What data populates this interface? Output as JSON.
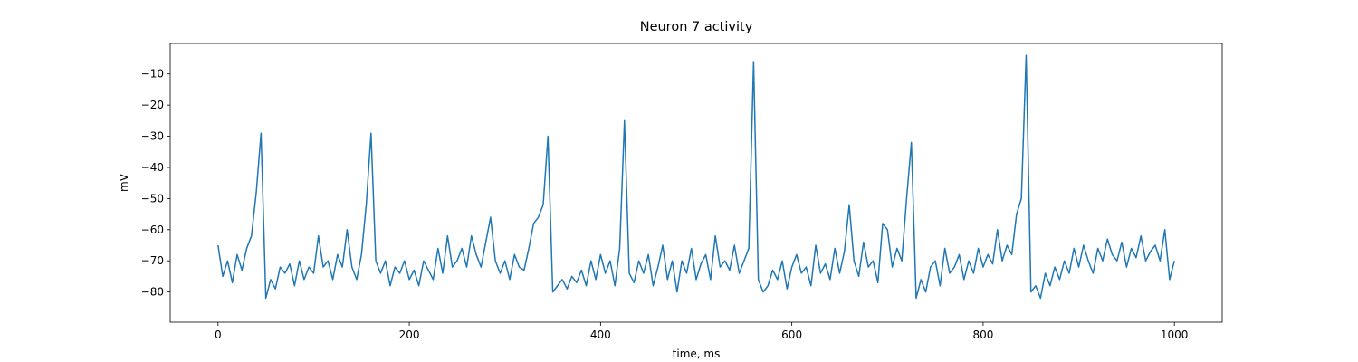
{
  "chart_data": {
    "type": "line",
    "title": "Neuron 7 activity",
    "x_label": "time, ms",
    "y_label": "mV",
    "color": "#1f77b4",
    "x": [
      0,
      5,
      10,
      15,
      20,
      25,
      30,
      35,
      40,
      45,
      50,
      55,
      60,
      65,
      70,
      75,
      80,
      85,
      90,
      95,
      100,
      105,
      110,
      115,
      120,
      125,
      130,
      135,
      140,
      145,
      150,
      155,
      160,
      165,
      170,
      175,
      180,
      185,
      190,
      195,
      200,
      205,
      210,
      215,
      220,
      225,
      230,
      235,
      240,
      245,
      250,
      255,
      260,
      265,
      270,
      275,
      280,
      285,
      290,
      295,
      300,
      305,
      310,
      315,
      320,
      325,
      330,
      335,
      340,
      345,
      350,
      355,
      360,
      365,
      370,
      375,
      380,
      385,
      390,
      395,
      400,
      405,
      410,
      415,
      420,
      425,
      430,
      435,
      440,
      445,
      450,
      455,
      460,
      465,
      470,
      475,
      480,
      485,
      490,
      495,
      500,
      505,
      510,
      515,
      520,
      525,
      530,
      535,
      540,
      545,
      550,
      555,
      560,
      565,
      570,
      575,
      580,
      585,
      590,
      595,
      600,
      605,
      610,
      615,
      620,
      625,
      630,
      635,
      640,
      645,
      650,
      655,
      660,
      665,
      670,
      675,
      680,
      685,
      690,
      695,
      700,
      705,
      710,
      715,
      720,
      725,
      730,
      735,
      740,
      745,
      750,
      755,
      760,
      765,
      770,
      775,
      780,
      785,
      790,
      795,
      800,
      805,
      810,
      815,
      820,
      825,
      830,
      835,
      840,
      845,
      850,
      855,
      860,
      865,
      870,
      875,
      880,
      885,
      890,
      895,
      900,
      905,
      910,
      915,
      920,
      925,
      930,
      935,
      940,
      945,
      950,
      955,
      960,
      965,
      970,
      975,
      980,
      985,
      990,
      995,
      1000
    ],
    "values": [
      -65,
      -75,
      -70,
      -77,
      -68,
      -73,
      -66,
      -62,
      -48,
      -29,
      -82,
      -76,
      -79,
      -72,
      -74,
      -71,
      -78,
      -70,
      -76,
      -72,
      -74,
      -62,
      -72,
      -70,
      -76,
      -68,
      -72,
      -60,
      -72,
      -76,
      -68,
      -52,
      -29,
      -70,
      -74,
      -70,
      -78,
      -72,
      -74,
      -70,
      -76,
      -73,
      -78,
      -70,
      -73,
      -76,
      -66,
      -74,
      -62,
      -72,
      -70,
      -66,
      -72,
      -62,
      -68,
      -72,
      -64,
      -56,
      -70,
      -74,
      -70,
      -76,
      -68,
      -72,
      -73,
      -66,
      -58,
      -56,
      -52,
      -30,
      -80,
      -78,
      -76,
      -79,
      -75,
      -77,
      -73,
      -78,
      -70,
      -76,
      -68,
      -74,
      -70,
      -78,
      -66,
      -25,
      -74,
      -77,
      -70,
      -74,
      -68,
      -78,
      -72,
      -65,
      -76,
      -70,
      -80,
      -70,
      -74,
      -66,
      -76,
      -71,
      -68,
      -76,
      -62,
      -72,
      -70,
      -73,
      -65,
      -74,
      -70,
      -66,
      -6,
      -76,
      -80,
      -78,
      -73,
      -76,
      -70,
      -79,
      -72,
      -68,
      -74,
      -72,
      -78,
      -65,
      -74,
      -71,
      -76,
      -66,
      -74,
      -67,
      -52,
      -70,
      -75,
      -64,
      -72,
      -70,
      -77,
      -58,
      -60,
      -72,
      -66,
      -70,
      -50,
      -32,
      -82,
      -76,
      -80,
      -72,
      -70,
      -78,
      -66,
      -74,
      -72,
      -68,
      -76,
      -70,
      -74,
      -66,
      -72,
      -68,
      -71,
      -60,
      -70,
      -65,
      -68,
      -55,
      -50,
      -4,
      -80,
      -78,
      -82,
      -74,
      -78,
      -72,
      -76,
      -70,
      -74,
      -66,
      -72,
      -65,
      -70,
      -74,
      -66,
      -70,
      -63,
      -68,
      -70,
      -64,
      -72,
      -66,
      -69,
      -62,
      -70,
      -67,
      -65,
      -70,
      -60,
      -76,
      -70
    ],
    "xlim": [
      -50,
      1050
    ],
    "ylim": [
      -89.7,
      -0.2
    ],
    "xticks": [
      0,
      200,
      400,
      600,
      800,
      1000
    ],
    "yticks": [
      {
        "value": -80,
        "label": "−80"
      },
      {
        "value": -70,
        "label": "−70"
      },
      {
        "value": -60,
        "label": "−60"
      },
      {
        "value": -50,
        "label": "−50"
      },
      {
        "value": -40,
        "label": "−40"
      },
      {
        "value": -30,
        "label": "−30"
      },
      {
        "value": -20,
        "label": "−20"
      },
      {
        "value": -10,
        "label": "−10"
      }
    ]
  }
}
